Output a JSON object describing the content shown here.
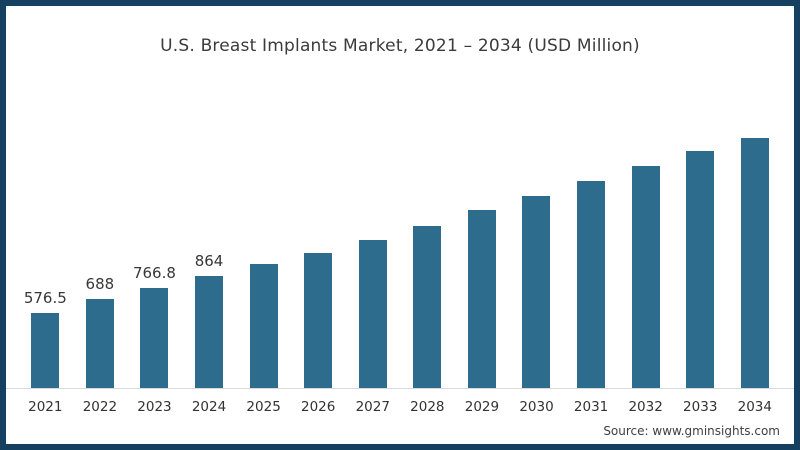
{
  "page": {
    "source_text": "Source: www.gminsights.com"
  },
  "colors": {
    "bar": "#2e6c8e",
    "frame_border": "#15405f",
    "axis_line": "#d9d9d9",
    "text": "#3b3b3b",
    "background": "#ffffff"
  },
  "chart_data": {
    "type": "bar",
    "title": "U.S. Breast Implants Market, 2021 – 2034 (USD Million)",
    "xlabel": "",
    "ylabel": "",
    "unit": "USD Million",
    "categories": [
      "2021",
      "2022",
      "2023",
      "2024",
      "2025",
      "2026",
      "2027",
      "2028",
      "2029",
      "2030",
      "2031",
      "2032",
      "2033",
      "2034"
    ],
    "values": [
      576.5,
      688,
      766.8,
      864,
      955,
      1040,
      1140,
      1250,
      1370,
      1480,
      1595,
      1710,
      1825,
      1925
    ],
    "data_labels": [
      "576.5",
      "688",
      "766.8",
      "864",
      "",
      "",
      "",
      "",
      "",
      "",
      "",
      "",
      "",
      ""
    ],
    "ylim": [
      0,
      2000
    ],
    "grid": false,
    "legend": false,
    "y_axis_shown": false,
    "baseline_shown": true
  }
}
